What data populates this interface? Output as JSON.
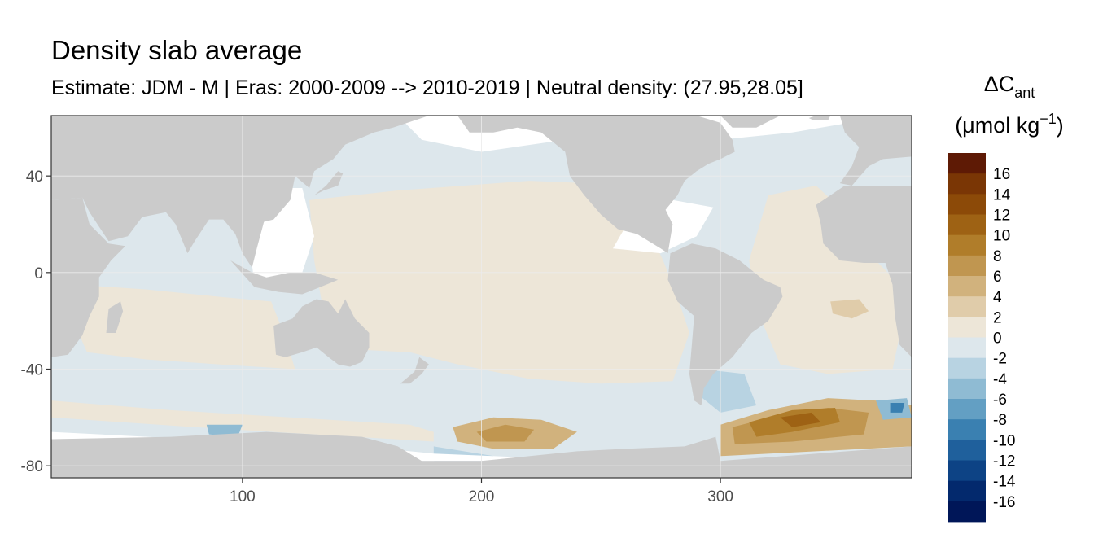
{
  "chart_data": {
    "type": "heatmap",
    "title": "Density slab average",
    "subtitle": "Estimate: JDM - M | Eras: 2000-2009 --> 2010-2019 | Neutral density: (27.95,28.05]",
    "xlabel": "",
    "ylabel": "",
    "xlim": [
      20,
      380
    ],
    "ylim": [
      -85,
      65
    ],
    "x_ticks": [
      100,
      200,
      300
    ],
    "y_ticks": [
      40,
      0,
      -40,
      -80
    ],
    "grid": true,
    "legend": {
      "title_symbol": "ΔC",
      "title_subscript": "ant",
      "unit_prefix": "(μmol kg",
      "unit_exponent": "−1",
      "unit_suffix": ")",
      "placement": "right",
      "breaks": [
        16,
        14,
        12,
        10,
        8,
        6,
        4,
        2,
        0,
        -2,
        -4,
        -6,
        -8,
        -10,
        -12,
        -14,
        -16
      ],
      "colors": [
        "#5e1a05",
        "#7a3605",
        "#8c4a08",
        "#9e6214",
        "#b07d2a",
        "#c09650",
        "#d1b27d",
        "#e0ccaa",
        "#ede6d8",
        "#dde7ec",
        "#b8d3e2",
        "#8fbbd3",
        "#639fc3",
        "#3a80b1",
        "#1f609c",
        "#0d4385",
        "#03296d",
        "#001658"
      ]
    },
    "colors": {
      "land": "#cbcbcb",
      "no_data": "#ffffff",
      "ocean_near_zero_neg": "#dde7ec",
      "ocean_near_zero_pos": "#ede6d8"
    }
  }
}
